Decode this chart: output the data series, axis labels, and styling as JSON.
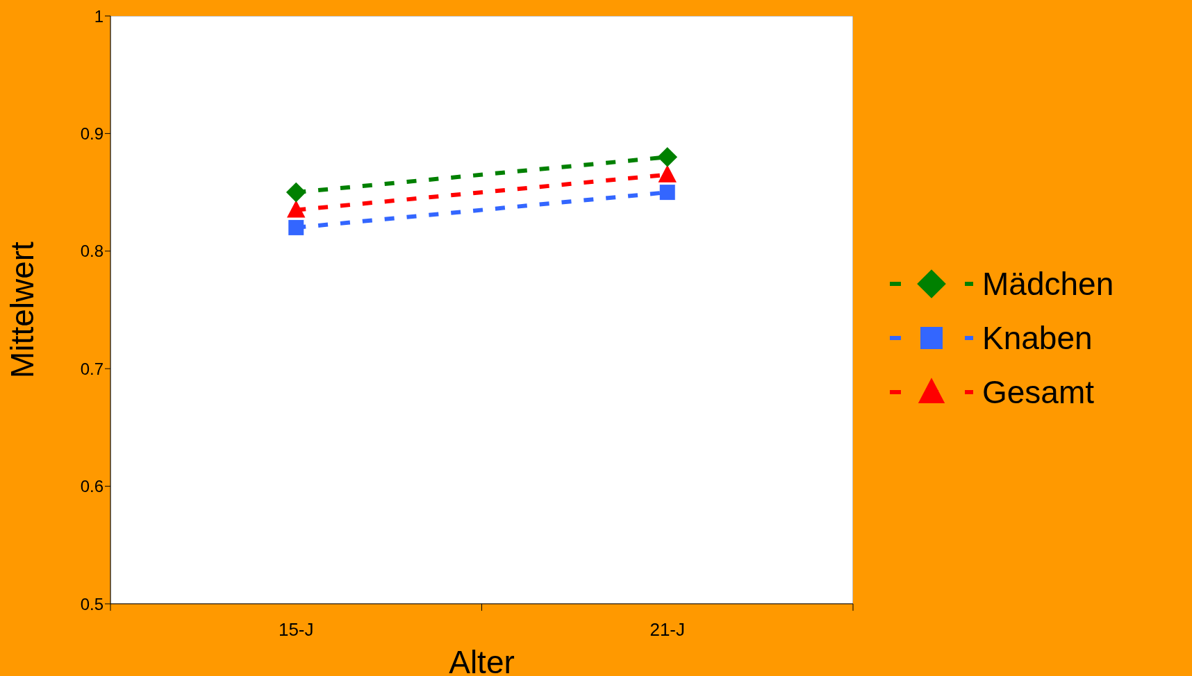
{
  "chart_data": {
    "type": "line",
    "xlabel": "Alter",
    "ylabel": "Mittelwert",
    "categories": [
      "15-J",
      "21-J"
    ],
    "series": [
      {
        "name": "Mädchen",
        "color": "#008000",
        "marker": "diamond",
        "values": [
          0.85,
          0.88
        ]
      },
      {
        "name": "Knaben",
        "color": "#3366ff",
        "marker": "square",
        "values": [
          0.82,
          0.85
        ]
      },
      {
        "name": "Gesamt",
        "color": "#ff0000",
        "marker": "triangle",
        "values": [
          0.835,
          0.865
        ]
      }
    ],
    "ylim": [
      0.5,
      1
    ],
    "yticks": [
      0.5,
      0.6,
      0.7,
      0.8,
      0.9,
      1
    ],
    "grid": false,
    "legend": "right",
    "line_style": "dashed"
  }
}
